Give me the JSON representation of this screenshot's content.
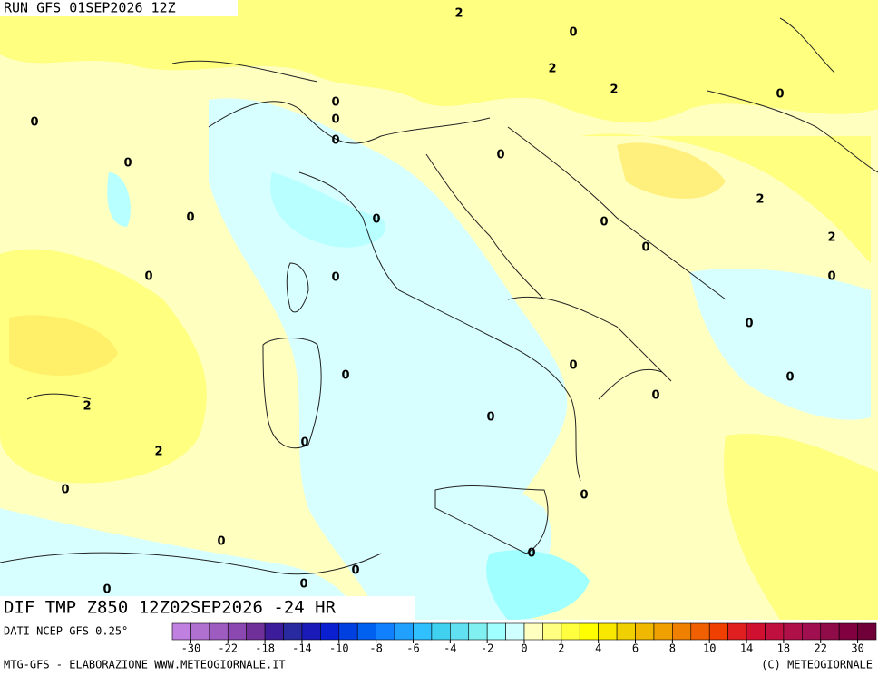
{
  "header": {
    "run": "RUN GFS 01SEP2026 12Z"
  },
  "map": {
    "contour_labels": [
      "2",
      "0",
      "2",
      "2",
      "0",
      "0",
      "0",
      "0",
      "0",
      "0",
      "0",
      "2",
      "0",
      "0",
      "0",
      "0",
      "2",
      "0",
      "0",
      "0",
      "0",
      "0",
      "0",
      "0",
      "0",
      "2",
      "0",
      "0",
      "2",
      "0",
      "0",
      "0",
      "0",
      "0",
      "0",
      "0"
    ]
  },
  "footer": {
    "title": "DIF TMP Z850 12Z02SEP2026 -24 HR",
    "source": "DATI NCEP GFS 0.25°",
    "credit_left": "MTG-GFS - ELABORAZIONE WWW.METEOGIORNALE.IT",
    "credit_right": "(C) METEOGIORNALE"
  },
  "colorbar": {
    "colors": [
      "#c080e0",
      "#b070d0",
      "#9e5cc0",
      "#8a48b0",
      "#70309a",
      "#3c1c9a",
      "#2a2aa0",
      "#1a1ab8",
      "#0a20d0",
      "#0040e0",
      "#0060f0",
      "#1080ff",
      "#20a0ff",
      "#30c0ff",
      "#40d0f0",
      "#60e0f0",
      "#80f0f0",
      "#a0ffff",
      "#d0ffff",
      "#ffffc0",
      "#ffff80",
      "#ffff40",
      "#ffff00",
      "#f8e800",
      "#f0d000",
      "#f0b800",
      "#f0a000",
      "#f08000",
      "#f06000",
      "#f04000",
      "#e02020",
      "#d01030",
      "#c01040",
      "#b01048",
      "#a01050",
      "#900c48",
      "#800040",
      "#700038"
    ],
    "ticks": [
      -30,
      -22,
      -18,
      -14,
      -10,
      -8,
      -6,
      -4,
      -2,
      0,
      2,
      4,
      6,
      8,
      10,
      14,
      18,
      22,
      30
    ]
  }
}
